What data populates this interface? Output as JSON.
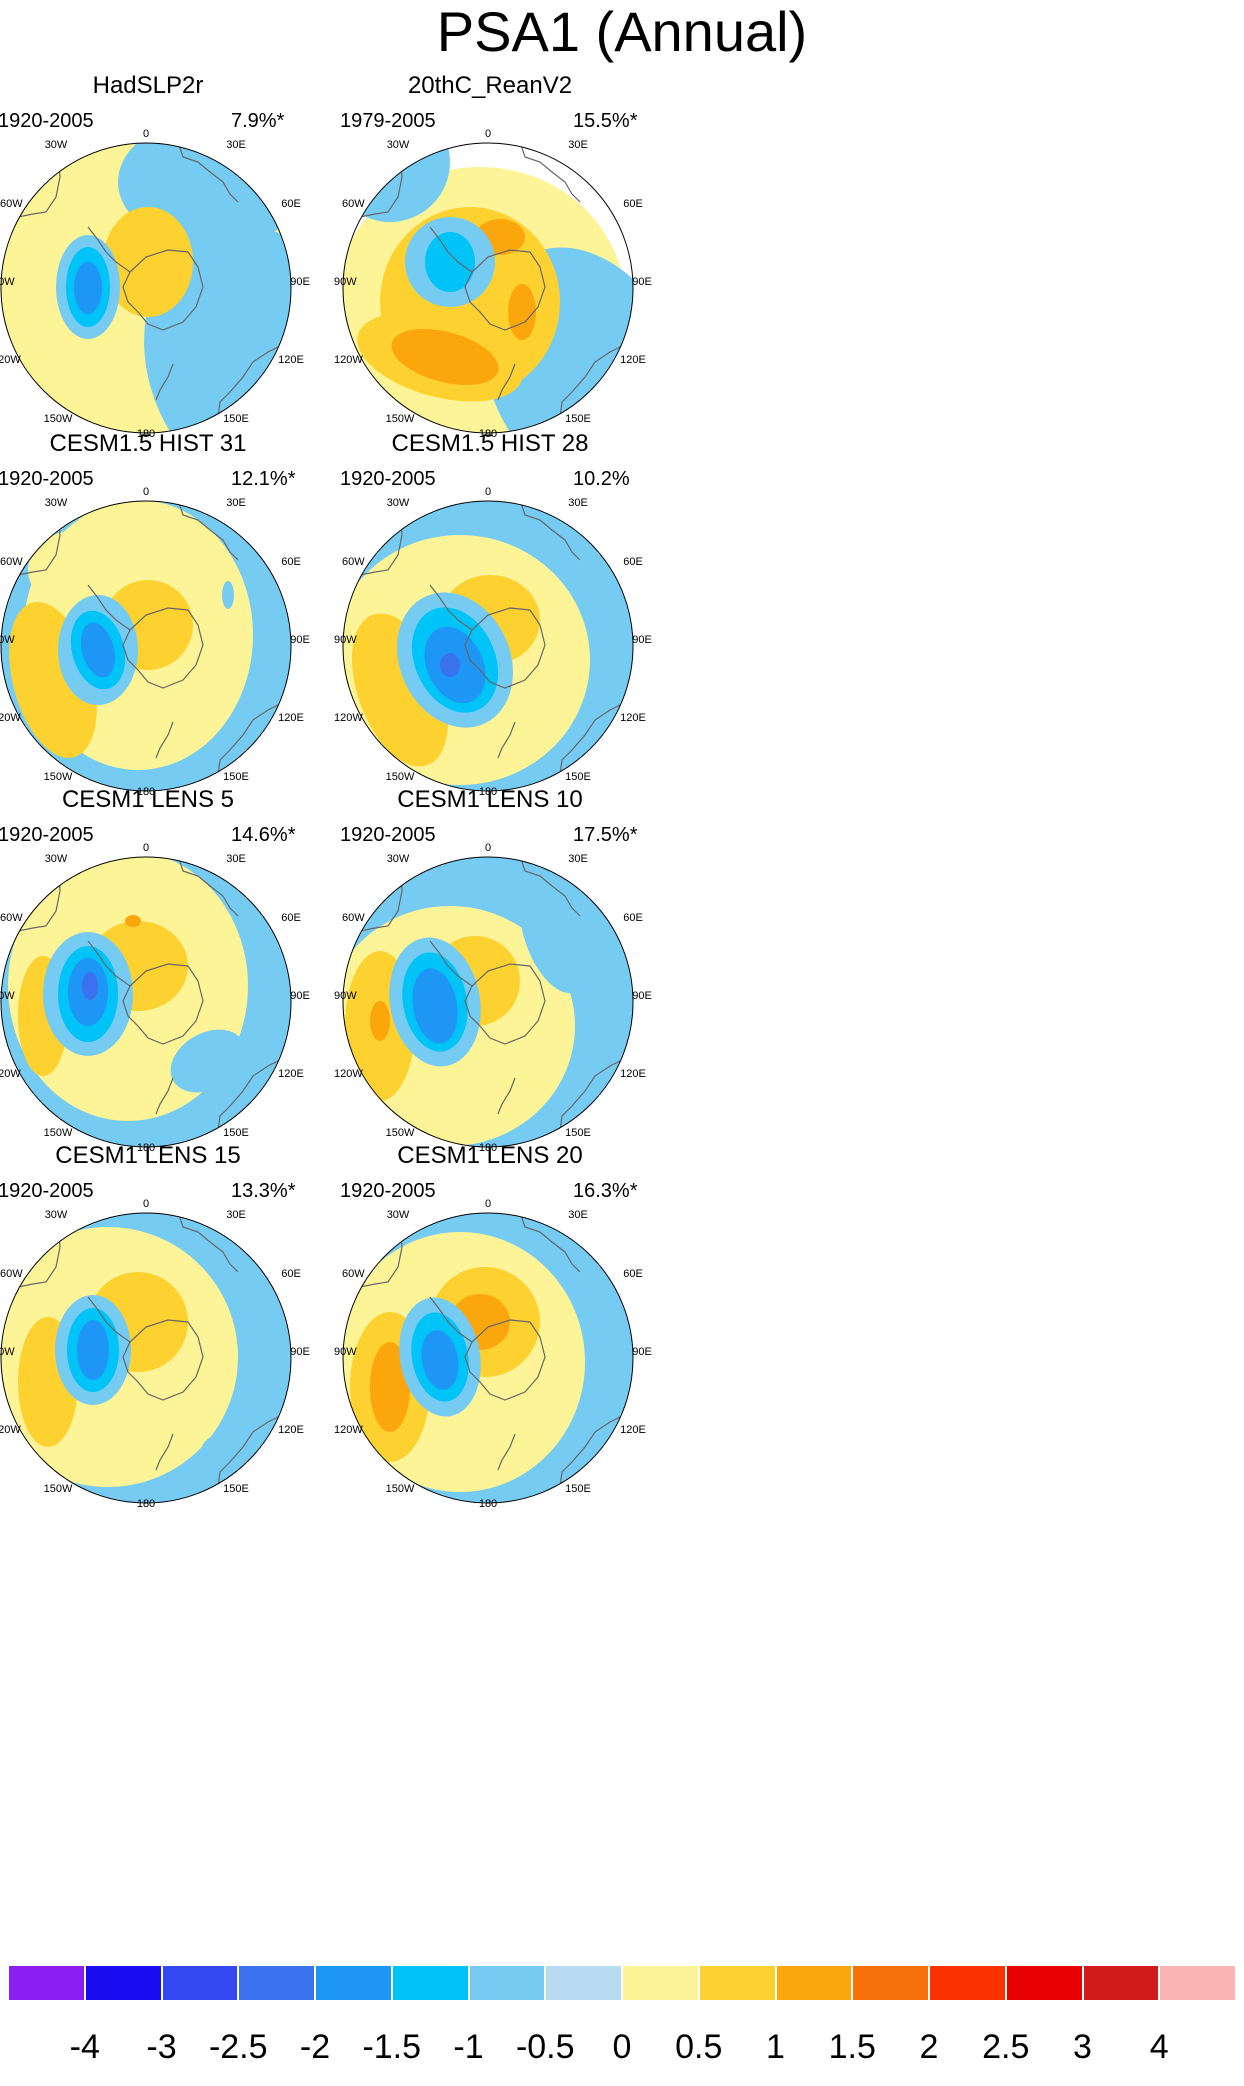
{
  "title": "PSA1 (Annual)",
  "lon_labels": {
    "top": "0",
    "tl": "30W",
    "tr": "30E",
    "ul": "60W",
    "ur": "60E",
    "l": "90W",
    "r": "90E",
    "ll": "120W",
    "lr": "120E",
    "bl": "150W",
    "br": "150E",
    "bottom": "180"
  },
  "colors": {
    "background": "#ffffff",
    "map_base": "#b7dcf2",
    "land_outline": "#666666"
  },
  "panels": [
    {
      "title": "HadSLP2r",
      "period": "1920-2005",
      "percent": "7.9%*"
    },
    {
      "title": "20thC_ReanV2",
      "period": "1979-2005",
      "percent": "15.5%*"
    },
    {
      "title": "CESM1.5 HIST 31",
      "period": "1920-2005",
      "percent": "12.1%*"
    },
    {
      "title": "CESM1.5 HIST 28",
      "period": "1920-2005",
      "percent": "10.2%"
    },
    {
      "title": "CESM1 LENS 5",
      "period": "1920-2005",
      "percent": "14.6%*"
    },
    {
      "title": "CESM1 LENS 10",
      "period": "1920-2005",
      "percent": "17.5%*"
    },
    {
      "title": "CESM1 LENS 15",
      "period": "1920-2005",
      "percent": "13.3%*"
    },
    {
      "title": "CESM1 LENS 20",
      "period": "1920-2005",
      "percent": "16.3%*"
    }
  ],
  "colorbar": {
    "colors": [
      "#8b1ef2",
      "#1a0cf0",
      "#3348f0",
      "#3a72ee",
      "#1e96f5",
      "#00c3f7",
      "#76cbf2",
      "#b7dcf2",
      "#fcf496",
      "#fdd130",
      "#fba60d",
      "#f87009",
      "#fb3200",
      "#e80000",
      "#d11a1a",
      "#fbb4b4"
    ],
    "ticks": [
      "-4",
      "-3",
      "-2.5",
      "-2",
      "-1.5",
      "-1",
      "-0.5",
      "0",
      "0.5",
      "1",
      "1.5",
      "2",
      "2.5",
      "3",
      "4"
    ]
  }
}
